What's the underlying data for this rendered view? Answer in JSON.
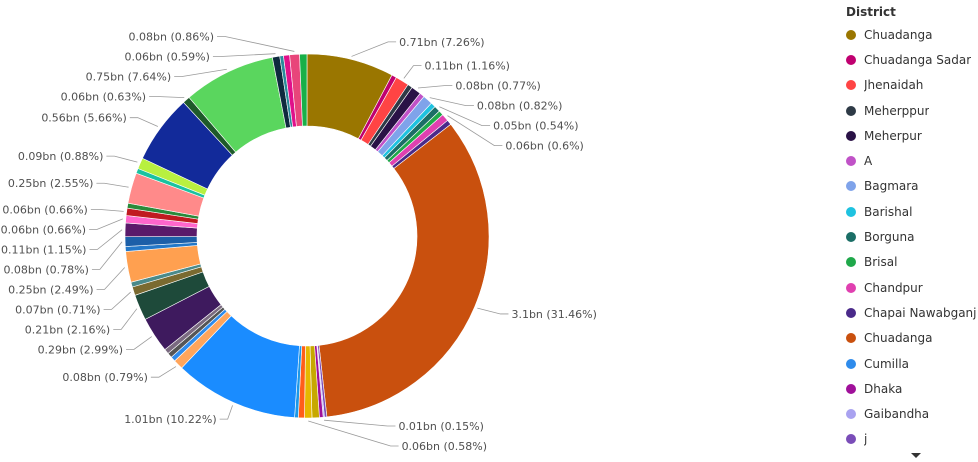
{
  "chart_data": {
    "type": "pie",
    "donut": true,
    "legend": {
      "title": "District",
      "placement": "right",
      "items": [
        {
          "label": "Chuadanga",
          "color": "#9A7600"
        },
        {
          "label": "Chuadanga Sadar",
          "color": "#C00070"
        },
        {
          "label": "Jhenaidah",
          "color": "#FF4444"
        },
        {
          "label": "Meherppur",
          "color": "#2E3A46"
        },
        {
          "label": "Meherpur",
          "color": "#2A1246"
        },
        {
          "label": "A",
          "color": "#C052C7"
        },
        {
          "label": "Bagmara",
          "color": "#7FA3EA"
        },
        {
          "label": "Barishal",
          "color": "#1EC2E0"
        },
        {
          "label": "Borguna",
          "color": "#1B6E66"
        },
        {
          "label": "Brisal",
          "color": "#1FA84A"
        },
        {
          "label": "Chandpur",
          "color": "#E040B0"
        },
        {
          "label": "Chapai Nawabganj",
          "color": "#4A2A8A"
        },
        {
          "label": "Chuadanga",
          "color": "#C9500E"
        },
        {
          "label": "Cumilla",
          "color": "#2E8BEB"
        },
        {
          "label": "Dhaka",
          "color": "#A0109A"
        },
        {
          "label": "Gaibandha",
          "color": "#A9A2F0"
        },
        {
          "label": "j",
          "color": "#7A4DB8"
        }
      ]
    },
    "slices": [
      {
        "label": "0.71bn (7.26%)",
        "value": 0.71,
        "percent": 7.26,
        "color": "#9A7600"
      },
      {
        "label": "",
        "value": 0.04,
        "percent": 0.4,
        "color": "#C00070"
      },
      {
        "label": "0.11bn (1.16%)",
        "value": 0.11,
        "percent": 1.16,
        "color": "#FF4444"
      },
      {
        "label": "",
        "value": 0.04,
        "percent": 0.4,
        "color": "#2E3A46"
      },
      {
        "label": "0.08bn (0.77%)",
        "value": 0.08,
        "percent": 0.77,
        "color": "#2A1246"
      },
      {
        "label": "",
        "value": 0.04,
        "percent": 0.4,
        "color": "#C052C7"
      },
      {
        "label": "0.08bn (0.82%)",
        "value": 0.08,
        "percent": 0.82,
        "color": "#7FA3EA"
      },
      {
        "label": "",
        "value": 0.04,
        "percent": 0.4,
        "color": "#1EC2E0"
      },
      {
        "label": "0.05bn (0.54%)",
        "value": 0.05,
        "percent": 0.54,
        "color": "#1B6E66"
      },
      {
        "label": "",
        "value": 0.04,
        "percent": 0.4,
        "color": "#1FA84A"
      },
      {
        "label": "0.06bn (0.6%)",
        "value": 0.06,
        "percent": 0.6,
        "color": "#E040B0"
      },
      {
        "label": "",
        "value": 0.04,
        "percent": 0.4,
        "color": "#4A2A8A"
      },
      {
        "label": "3.1bn (31.46%)",
        "value": 3.1,
        "percent": 31.46,
        "color": "#C9500E"
      },
      {
        "label": "",
        "value": 0.02,
        "percent": 0.2,
        "color": "#7A4DB8"
      },
      {
        "label": "0.01bn (0.15%)",
        "value": 0.01,
        "percent": 0.15,
        "color": "#A9A2F0"
      },
      {
        "label": "",
        "value": 0.03,
        "percent": 0.3,
        "color": "#A0109A"
      },
      {
        "label": "",
        "value": 0.06,
        "percent": 0.6,
        "color": "#C7A800"
      },
      {
        "label": "0.06bn (0.58%)",
        "value": 0.06,
        "percent": 0.58,
        "color": "#E5B800"
      },
      {
        "label": "",
        "value": 0.05,
        "percent": 0.5,
        "color": "#FF5E1A"
      },
      {
        "label": "",
        "value": 0.03,
        "percent": 0.3,
        "color": "#1C98E8"
      },
      {
        "label": "1.01bn (10.22%)",
        "value": 1.01,
        "percent": 10.22,
        "color": "#1A8CFF"
      },
      {
        "label": "0.08bn (0.79%)",
        "value": 0.08,
        "percent": 0.79,
        "color": "#FFA55C"
      },
      {
        "label": "",
        "value": 0.04,
        "percent": 0.4,
        "color": "#2E8BEB"
      },
      {
        "label": "",
        "value": 0.04,
        "percent": 0.4,
        "color": "#555555"
      },
      {
        "label": "",
        "value": 0.04,
        "percent": 0.4,
        "color": "#7A6A80"
      },
      {
        "label": "0.29bn (2.99%)",
        "value": 0.29,
        "percent": 2.99,
        "color": "#3E1A5E"
      },
      {
        "label": "0.21bn (2.16%)",
        "value": 0.21,
        "percent": 2.16,
        "color": "#1E4A3A"
      },
      {
        "label": "0.07bn (0.71%)",
        "value": 0.07,
        "percent": 0.71,
        "color": "#7A6A30"
      },
      {
        "label": "",
        "value": 0.04,
        "percent": 0.4,
        "color": "#4A8A8A"
      },
      {
        "label": "0.25bn (2.49%)",
        "value": 0.25,
        "percent": 2.49,
        "color": "#FFA050"
      },
      {
        "label": "",
        "value": 0.04,
        "percent": 0.4,
        "color": "#2478C8"
      },
      {
        "label": "0.08bn (0.78%)",
        "value": 0.08,
        "percent": 0.78,
        "color": "#1C5FA8"
      },
      {
        "label": "0.11bn (1.15%)",
        "value": 0.11,
        "percent": 1.15,
        "color": "#5A1A6A"
      },
      {
        "label": "0.06bn (0.66%)",
        "value": 0.06,
        "percent": 0.66,
        "color": "#FF66CC"
      },
      {
        "label": "0.06bn (0.66%)",
        "value": 0.06,
        "percent": 0.66,
        "color": "#C01A20"
      },
      {
        "label": "",
        "value": 0.04,
        "percent": 0.4,
        "color": "#2A8A3A"
      },
      {
        "label": "0.25bn (2.55%)",
        "value": 0.25,
        "percent": 2.55,
        "color": "#FF8A8A"
      },
      {
        "label": "",
        "value": 0.04,
        "percent": 0.4,
        "color": "#1AC2A0"
      },
      {
        "label": "0.09bn (0.88%)",
        "value": 0.09,
        "percent": 0.88,
        "color": "#B8F040"
      },
      {
        "label": "0.56bn (5.66%)",
        "value": 0.56,
        "percent": 5.66,
        "color": "#122A9A"
      },
      {
        "label": "0.06bn (0.63%)",
        "value": 0.06,
        "percent": 0.63,
        "color": "#1E5A2A"
      },
      {
        "label": "0.75bn (7.64%)",
        "value": 0.75,
        "percent": 7.64,
        "color": "#5AD65E"
      },
      {
        "label": "0.06bn (0.59%)",
        "value": 0.06,
        "percent": 0.59,
        "color": "#0E2A3E"
      },
      {
        "label": "",
        "value": 0.03,
        "percent": 0.3,
        "color": "#2A8A9A"
      },
      {
        "label": "",
        "value": 0.05,
        "percent": 0.5,
        "color": "#E0108A"
      },
      {
        "label": "0.08bn (0.86%)",
        "value": 0.08,
        "percent": 0.86,
        "color": "#E8457A"
      },
      {
        "label": "",
        "value": 0.06,
        "percent": 0.6,
        "color": "#18B048"
      }
    ]
  }
}
